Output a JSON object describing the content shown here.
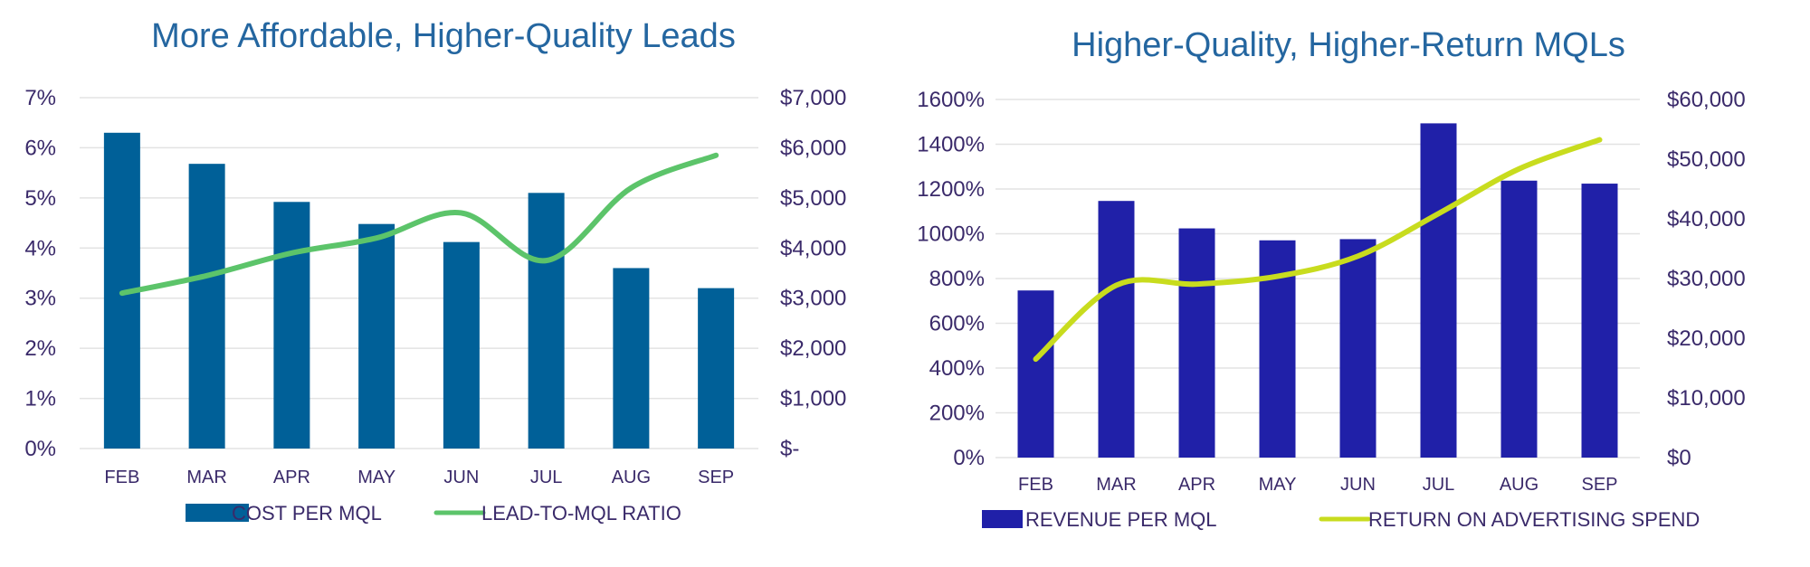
{
  "chart_data": [
    {
      "type": "bar",
      "title": "More Affordable, Higher-Quality Leads",
      "categories": [
        "FEB",
        "MAR",
        "APR",
        "MAY",
        "JUN",
        "JUL",
        "AUG",
        "SEP"
      ],
      "series": [
        {
          "name": "COST PER MQL",
          "kind": "bar",
          "axis": "right",
          "color": "#006098",
          "values": [
            6300,
            5680,
            4920,
            4480,
            4120,
            5100,
            3600,
            3200
          ]
        },
        {
          "name": "LEAD-TO-MQL RATIO",
          "kind": "line",
          "smooth": true,
          "axis": "left",
          "color": "#5cc46a",
          "values": [
            3.1,
            3.45,
            3.9,
            4.2,
            4.7,
            3.75,
            5.2,
            5.85
          ]
        }
      ],
      "left_axis": {
        "range": [
          0,
          7
        ],
        "ticks": [
          "0%",
          "1%",
          "2%",
          "3%",
          "4%",
          "5%",
          "6%",
          "7%"
        ]
      },
      "right_axis": {
        "range": [
          0,
          7000
        ],
        "ticks": [
          "$-",
          "$1,000",
          "$2,000",
          "$3,000",
          "$4,000",
          "$5,000",
          "$6,000",
          "$7,000"
        ]
      },
      "grid": true,
      "legend_position": "bottom"
    },
    {
      "type": "bar",
      "title": "Higher-Quality, Higher-Return MQLs",
      "categories": [
        "FEB",
        "MAR",
        "APR",
        "MAY",
        "JUN",
        "JUL",
        "AUG",
        "SEP"
      ],
      "series": [
        {
          "name": "REVENUE PER MQL",
          "kind": "bar",
          "axis": "right",
          "color": "#2020a8",
          "values": [
            28000,
            43000,
            38400,
            36400,
            36600,
            56000,
            46400,
            45900
          ]
        },
        {
          "name": "RETURN ON ADVERTISING SPEND",
          "kind": "line",
          "smooth": true,
          "axis": "left",
          "color": "#c8dc1e",
          "values": [
            440,
            770,
            775,
            810,
            900,
            1090,
            1290,
            1420
          ]
        }
      ],
      "left_axis": {
        "range": [
          0,
          1600
        ],
        "ticks": [
          "0%",
          "200%",
          "400%",
          "600%",
          "800%",
          "1000%",
          "1200%",
          "1400%",
          "1600%"
        ]
      },
      "right_axis": {
        "range": [
          0,
          60000
        ],
        "ticks": [
          "$0",
          "$10,000",
          "$20,000",
          "$30,000",
          "$40,000",
          "$50,000",
          "$60,000"
        ]
      },
      "grid": true,
      "legend_position": "bottom"
    }
  ]
}
